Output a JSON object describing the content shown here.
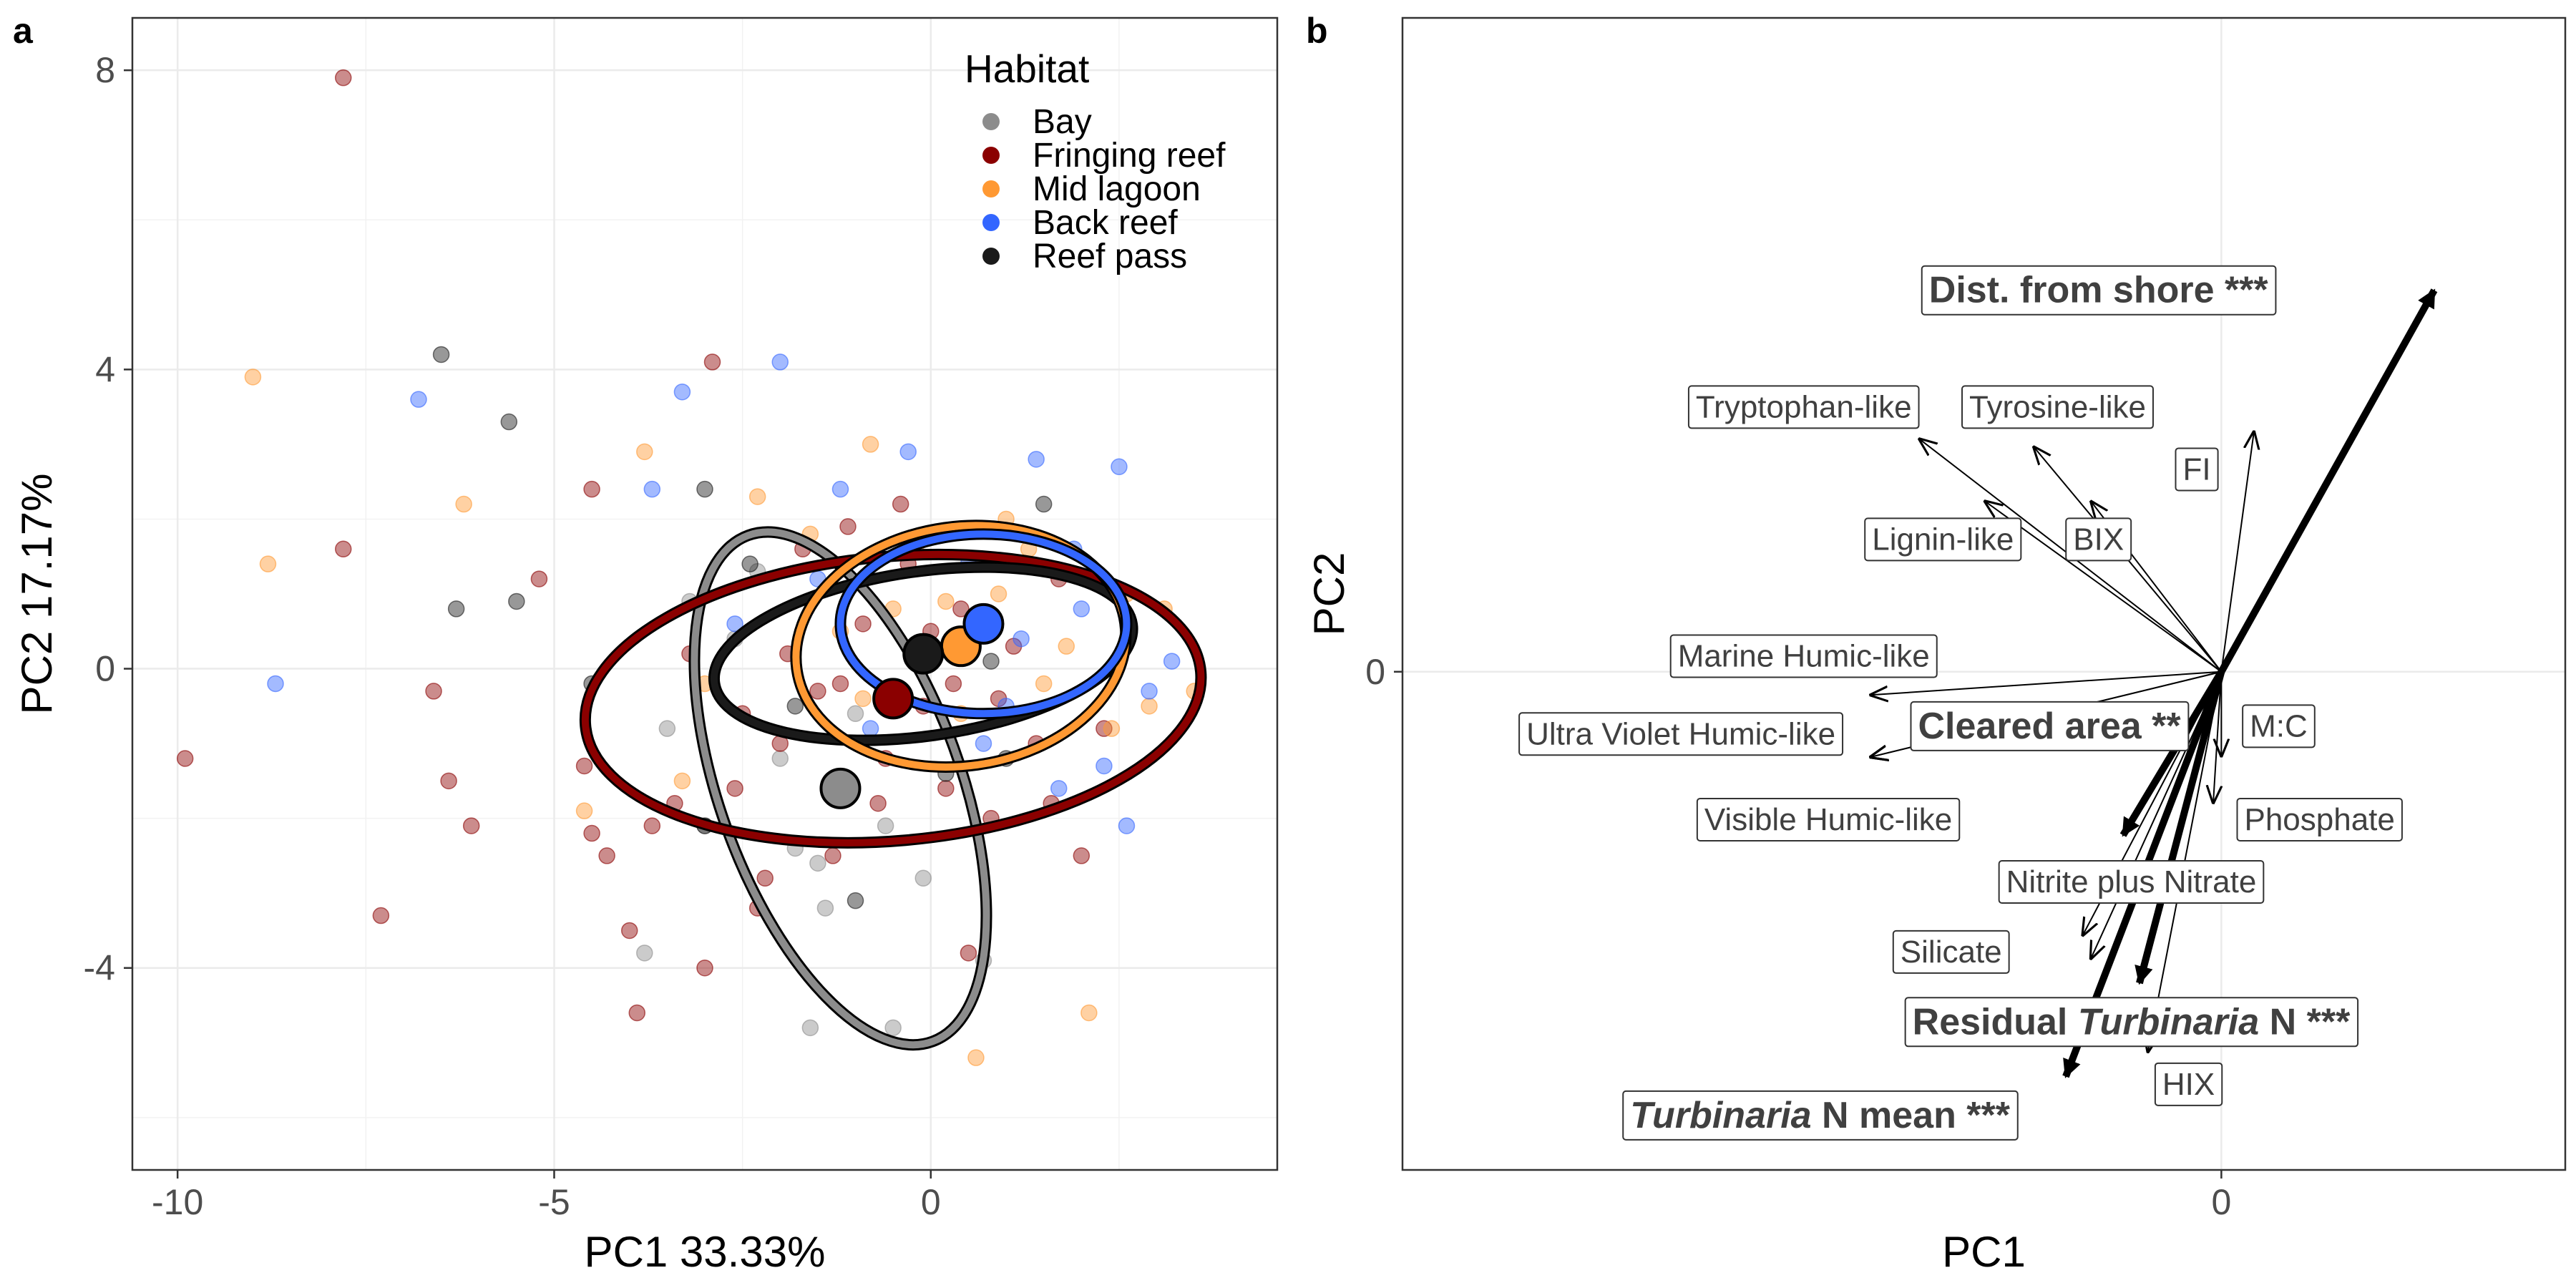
{
  "panels": {
    "a": {
      "letter": "a"
    },
    "b": {
      "letter": "b"
    }
  },
  "chart_data": [
    {
      "type": "scatter",
      "panel": "a",
      "xlabel": "PC1 33.33%",
      "ylabel": "PC2 17.17%",
      "xlim": [
        -10.6,
        4.6
      ],
      "ylim": [
        -6.7,
        8.7
      ],
      "xticks": [
        -10,
        -5,
        0
      ],
      "xtick_labels": [
        "-10",
        "-5",
        "0"
      ],
      "yticks": [
        -4,
        0,
        4,
        8
      ],
      "ytick_labels": [
        "-4",
        "0",
        "4",
        "8"
      ],
      "grid": true,
      "legend": {
        "title": "Habitat",
        "position": "top-right"
      },
      "series": [
        {
          "name": "Bay",
          "color": "#8c8c8c",
          "centroid": [
            -1.2,
            -1.6
          ],
          "ellipse": {
            "center": [
              -1.2,
              -1.6
            ],
            "rx": 1.6,
            "ry": 3.6,
            "angle_deg": 20
          },
          "points": [
            [
              -3.5,
              -0.8
            ],
            [
              -3.8,
              -3.8
            ],
            [
              -1.6,
              -4.8
            ],
            [
              -0.5,
              -4.8
            ],
            [
              0.7,
              -3.9
            ],
            [
              -1.8,
              -2.4
            ],
            [
              -0.1,
              -2.8
            ],
            [
              -1.5,
              -2.6
            ],
            [
              -3.2,
              0.9
            ],
            [
              -2.6,
              0.4
            ],
            [
              -1.0,
              -0.6
            ],
            [
              -2.0,
              -1.2
            ],
            [
              -3.0,
              -2.1
            ],
            [
              -0.6,
              -2.1
            ],
            [
              -2.3,
              1.3
            ],
            [
              -1.4,
              -3.2
            ]
          ]
        },
        {
          "name": "Fringing reef",
          "color": "#8b0000",
          "centroid": [
            -0.5,
            -0.4
          ],
          "ellipse": {
            "center": [
              -0.5,
              -0.4
            ],
            "rx": 4.1,
            "ry": 1.9,
            "angle_deg": 5
          },
          "points": [
            [
              -7.8,
              7.9
            ],
            [
              -9.9,
              -1.2
            ],
            [
              -7.8,
              1.6
            ],
            [
              -7.3,
              -3.3
            ],
            [
              -6.6,
              -0.3
            ],
            [
              -6.4,
              -1.5
            ],
            [
              -6.1,
              -2.1
            ],
            [
              -5.2,
              1.2
            ],
            [
              -4.5,
              2.4
            ],
            [
              -4.6,
              -1.3
            ],
            [
              -4.5,
              -2.2
            ],
            [
              -4.3,
              -2.5
            ],
            [
              -4.0,
              -3.5
            ],
            [
              -3.9,
              -4.6
            ],
            [
              -3.7,
              -2.1
            ],
            [
              -3.4,
              -1.8
            ],
            [
              -3.0,
              -4.0
            ],
            [
              -2.9,
              4.1
            ],
            [
              -2.6,
              -1.6
            ],
            [
              -2.5,
              -0.6
            ],
            [
              -2.2,
              -2.8
            ],
            [
              -2.0,
              -1.0
            ],
            [
              -1.7,
              1.6
            ],
            [
              -1.5,
              -0.3
            ],
            [
              -1.3,
              -2.5
            ],
            [
              -1.1,
              1.9
            ],
            [
              -0.9,
              0.6
            ],
            [
              -0.6,
              -1.2
            ],
            [
              -0.3,
              1.4
            ],
            [
              -0.1,
              -0.5
            ],
            [
              0.2,
              -1.6
            ],
            [
              0.4,
              0.8
            ],
            [
              0.5,
              -3.8
            ],
            [
              0.8,
              -2.0
            ],
            [
              1.1,
              0.3
            ],
            [
              1.4,
              -1.0
            ],
            [
              1.7,
              1.2
            ],
            [
              2.0,
              -2.5
            ],
            [
              2.3,
              -0.8
            ],
            [
              -1.9,
              0.2
            ],
            [
              -1.2,
              -0.2
            ],
            [
              0.3,
              -0.2
            ],
            [
              0.0,
              0.5
            ],
            [
              0.9,
              -0.4
            ],
            [
              -0.7,
              -1.8
            ],
            [
              1.6,
              -1.8
            ],
            [
              -2.3,
              -3.2
            ],
            [
              -3.2,
              0.2
            ],
            [
              -0.4,
              2.2
            ],
            [
              1.2,
              1.8
            ]
          ]
        },
        {
          "name": "Mid lagoon",
          "color": "#ff9933",
          "centroid": [
            0.4,
            0.3
          ],
          "ellipse": {
            "center": [
              0.4,
              0.3
            ],
            "rx": 2.2,
            "ry": 1.6,
            "angle_deg": 8
          },
          "points": [
            [
              -9.0,
              3.9
            ],
            [
              -8.8,
              1.4
            ],
            [
              -6.2,
              2.2
            ],
            [
              -4.6,
              -1.9
            ],
            [
              -3.8,
              2.9
            ],
            [
              -3.3,
              -1.5
            ],
            [
              -2.3,
              2.3
            ],
            [
              -1.6,
              1.8
            ],
            [
              -0.8,
              3.0
            ],
            [
              -0.2,
              1.6
            ],
            [
              0.4,
              -0.6
            ],
            [
              0.6,
              -5.2
            ],
            [
              1.3,
              1.6
            ],
            [
              2.1,
              -4.6
            ],
            [
              2.6,
              1.0
            ],
            [
              3.1,
              0.8
            ],
            [
              3.5,
              -0.3
            ],
            [
              1.8,
              0.3
            ],
            [
              0.9,
              1.0
            ],
            [
              -0.5,
              0.8
            ],
            [
              -1.2,
              0.5
            ],
            [
              2.4,
              -0.8
            ],
            [
              1.5,
              -0.2
            ],
            [
              0.2,
              0.9
            ],
            [
              -0.9,
              -0.4
            ],
            [
              -3.0,
              -0.2
            ],
            [
              2.9,
              -0.5
            ],
            [
              1.0,
              2.0
            ]
          ]
        },
        {
          "name": "Back reef",
          "color": "#3366ff",
          "centroid": [
            0.7,
            0.6
          ],
          "ellipse": {
            "center": [
              0.7,
              0.6
            ],
            "rx": 1.9,
            "ry": 1.2,
            "angle_deg": 0
          },
          "points": [
            [
              -8.7,
              -0.2
            ],
            [
              -6.8,
              3.6
            ],
            [
              -3.7,
              2.4
            ],
            [
              -3.3,
              3.7
            ],
            [
              -2.0,
              4.1
            ],
            [
              -1.5,
              1.2
            ],
            [
              -0.3,
              2.9
            ],
            [
              0.5,
              1.4
            ],
            [
              1.0,
              -0.5
            ],
            [
              1.4,
              2.8
            ],
            [
              2.0,
              0.8
            ],
            [
              2.5,
              2.7
            ],
            [
              3.2,
              0.1
            ],
            [
              2.6,
              -2.1
            ],
            [
              -0.8,
              -0.8
            ],
            [
              0.1,
              1.8
            ],
            [
              1.7,
              -1.6
            ],
            [
              2.9,
              -0.3
            ],
            [
              -1.2,
              2.4
            ],
            [
              0.7,
              -1.0
            ],
            [
              1.9,
              1.6
            ],
            [
              2.3,
              -1.3
            ],
            [
              -2.6,
              0.6
            ],
            [
              1.2,
              0.4
            ]
          ]
        },
        {
          "name": "Reef pass",
          "color": "#1a1a1a",
          "centroid": [
            -0.1,
            0.2
          ],
          "ellipse": {
            "center": [
              -0.1,
              0.2
            ],
            "rx": 2.8,
            "ry": 1.1,
            "angle_deg": 8
          },
          "points": [
            [
              -6.5,
              4.2
            ],
            [
              -5.6,
              3.3
            ],
            [
              -6.3,
              0.8
            ],
            [
              -5.5,
              0.9
            ],
            [
              -4.5,
              -0.2
            ],
            [
              -3.0,
              2.4
            ],
            [
              -3.0,
              -2.1
            ],
            [
              -2.4,
              1.4
            ],
            [
              -1.0,
              -3.1
            ],
            [
              0.2,
              -1.4
            ],
            [
              1.5,
              2.2
            ],
            [
              0.8,
              0.1
            ],
            [
              -1.8,
              -0.5
            ],
            [
              1.0,
              -1.2
            ]
          ]
        }
      ]
    },
    {
      "type": "biplot",
      "panel": "b",
      "xlabel": "PC1",
      "ylabel": "PC2",
      "xlim": [
        -1.0,
        0.42
      ],
      "ylim": [
        -0.64,
        0.84
      ],
      "xticks": [
        0
      ],
      "xtick_labels": [
        "0"
      ],
      "yticks": [
        0
      ],
      "ytick_labels": [
        "0"
      ],
      "grid": true,
      "vectors": [
        {
          "name": "Dist. from shore ***",
          "end": [
            0.26,
            0.49
          ],
          "label_at": [
            -0.15,
            0.49
          ],
          "bold": true
        },
        {
          "name": "Tryptophan-like",
          "end": [
            -0.37,
            0.3
          ],
          "label_at": [
            -0.51,
            0.34
          ],
          "bold": false
        },
        {
          "name": "Tyrosine-like",
          "end": [
            -0.23,
            0.29
          ],
          "label_at": [
            -0.2,
            0.34
          ],
          "bold": false
        },
        {
          "name": "FI",
          "end": [
            0.04,
            0.31
          ],
          "label_at": [
            -0.03,
            0.26
          ],
          "bold": false
        },
        {
          "name": "Lignin-like",
          "end": [
            -0.29,
            0.22
          ],
          "label_at": [
            -0.34,
            0.17
          ],
          "bold": false
        },
        {
          "name": "BIX",
          "end": [
            -0.16,
            0.22
          ],
          "label_at": [
            -0.15,
            0.17
          ],
          "bold": false
        },
        {
          "name": "Marine Humic-like",
          "end": [
            -0.43,
            -0.03
          ],
          "label_at": [
            -0.51,
            0.02
          ],
          "bold": false
        },
        {
          "name": "Ultra Violet Humic-like",
          "end": [
            -0.43,
            -0.11
          ],
          "label_at": [
            -0.66,
            -0.08
          ],
          "bold": false
        },
        {
          "name": "Cleared area **",
          "end": [
            -0.12,
            -0.21
          ],
          "label_at": [
            -0.21,
            -0.07
          ],
          "bold": true
        },
        {
          "name": "M:C",
          "end": [
            0.0,
            -0.11
          ],
          "label_at": [
            0.07,
            -0.07
          ],
          "bold": false
        },
        {
          "name": "Visible Humic-like",
          "end": [
            -0.43,
            -0.11
          ],
          "label_at": [
            -0.48,
            -0.19
          ],
          "bold": false
        },
        {
          "name": "Phosphate",
          "end": [
            -0.01,
            -0.17
          ],
          "label_at": [
            0.12,
            -0.19
          ],
          "bold": false
        },
        {
          "name": "Nitrite plus Nitrate",
          "end": [
            -0.17,
            -0.34
          ],
          "label_at": [
            -0.11,
            -0.27
          ],
          "bold": false
        },
        {
          "name": "Silicate",
          "end": [
            -0.16,
            -0.37
          ],
          "label_at": [
            -0.33,
            -0.36
          ],
          "bold": false
        },
        {
          "name": "Residual Turbinaria N ***",
          "end": [
            -0.1,
            -0.4
          ],
          "label_at": [
            -0.11,
            -0.45
          ],
          "bold": true
        },
        {
          "name": "HIX",
          "end": [
            -0.09,
            -0.49
          ],
          "label_at": [
            -0.04,
            -0.53
          ],
          "bold": false
        },
        {
          "name": "Turbinaria N mean ***",
          "end": [
            -0.19,
            -0.52
          ],
          "label_at": [
            -0.49,
            -0.57
          ],
          "bold": true
        }
      ]
    }
  ]
}
